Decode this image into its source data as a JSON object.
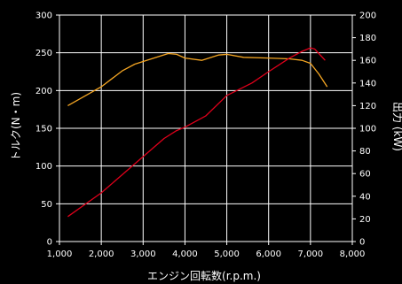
{
  "chart_data": {
    "type": "line",
    "xlabel": "エンジン回転数(r.p.m.)",
    "ylabel_left": "トルク(N・m)",
    "ylabel_right": "出力 (kW)",
    "xlim": [
      1000,
      8000
    ],
    "ylim_left": [
      0,
      300
    ],
    "ylim_right": [
      0,
      200
    ],
    "x_ticks": [
      1000,
      2000,
      3000,
      4000,
      5000,
      6000,
      7000,
      8000
    ],
    "x_tick_labels": [
      "1,000",
      "2,000",
      "3,000",
      "4,000",
      "5,000",
      "6,000",
      "7,000",
      "8,000"
    ],
    "y_left_ticks": [
      0,
      50,
      100,
      150,
      200,
      250,
      300
    ],
    "y_left_tick_labels": [
      "0",
      "50",
      "100",
      "150",
      "200",
      "250",
      "300"
    ],
    "y_right_ticks": [
      0,
      20,
      40,
      60,
      80,
      100,
      120,
      140,
      160,
      180,
      200
    ],
    "y_right_tick_labels": [
      "0",
      "20",
      "40",
      "60",
      "80",
      "100",
      "120",
      "140",
      "160",
      "180",
      "200"
    ],
    "grid": true,
    "series": [
      {
        "axis": "left",
        "color": "#f5a623",
        "points": [
          [
            1200,
            180
          ],
          [
            2000,
            205
          ],
          [
            2500,
            226
          ],
          [
            2800,
            235
          ],
          [
            3200,
            242
          ],
          [
            3600,
            249
          ],
          [
            3800,
            248
          ],
          [
            4000,
            243
          ],
          [
            4400,
            240
          ],
          [
            4800,
            247
          ],
          [
            5000,
            248
          ],
          [
            5400,
            244
          ],
          [
            6000,
            243
          ],
          [
            6500,
            242
          ],
          [
            6800,
            240
          ],
          [
            7000,
            236
          ],
          [
            7200,
            222
          ],
          [
            7400,
            205
          ]
        ]
      },
      {
        "axis": "right",
        "color": "#e0001b",
        "points": [
          [
            1200,
            22
          ],
          [
            2000,
            43
          ],
          [
            2500,
            59
          ],
          [
            3000,
            75
          ],
          [
            3500,
            91
          ],
          [
            3800,
            98
          ],
          [
            4000,
            101
          ],
          [
            4500,
            111
          ],
          [
            5000,
            129
          ],
          [
            5600,
            140
          ],
          [
            6000,
            150
          ],
          [
            6500,
            162
          ],
          [
            6800,
            168
          ],
          [
            7000,
            171
          ],
          [
            7100,
            170
          ],
          [
            7200,
            166
          ],
          [
            7350,
            160
          ]
        ]
      }
    ]
  }
}
